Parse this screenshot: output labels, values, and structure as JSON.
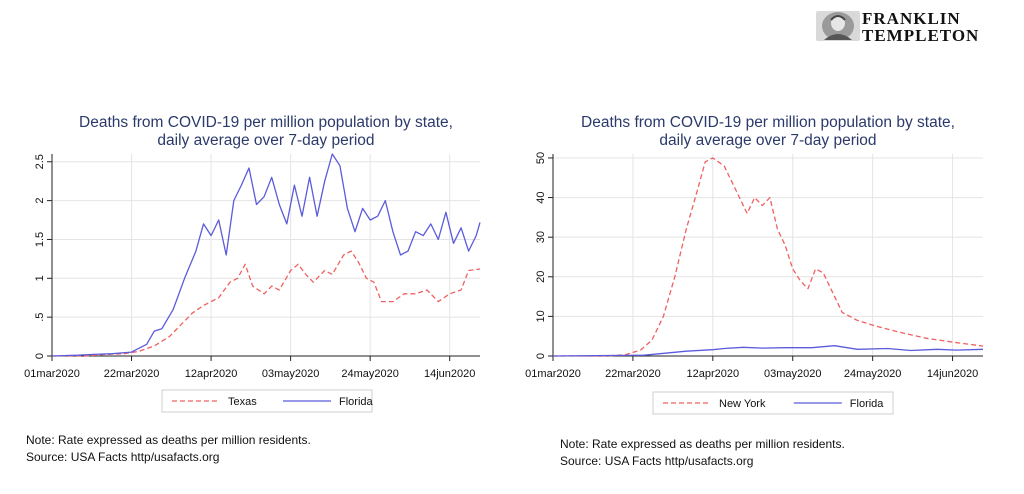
{
  "logo": {
    "line1": "FRANKLIN",
    "line2": "TEMPLETON"
  },
  "chart_data": [
    {
      "type": "line",
      "title": "Deaths from COVID-19 per million population by state,",
      "subtitle": "daily average over 7-day period",
      "xlabel": "",
      "ylabel": "",
      "x_ticks": [
        "01mar2020",
        "22mar2020",
        "12apr2020",
        "03may2020",
        "24may2020",
        "14jun2020"
      ],
      "x_range": [
        "2020-03-01",
        "2020-06-22"
      ],
      "y_ticks": [
        "0",
        ".5",
        "1",
        "1.5",
        "2",
        "2.5"
      ],
      "ylim": [
        0,
        2.6
      ],
      "grid": true,
      "legend": "bottom",
      "series": [
        {
          "name": "Texas",
          "color": "#f06060",
          "dash": true,
          "points": [
            [
              "2020-03-01",
              0
            ],
            [
              "2020-03-10",
              0
            ],
            [
              "2020-03-15",
              0.02
            ],
            [
              "2020-03-20",
              0.03
            ],
            [
              "2020-03-24",
              0.06
            ],
            [
              "2020-03-28",
              0.13
            ],
            [
              "2020-04-01",
              0.25
            ],
            [
              "2020-04-04",
              0.4
            ],
            [
              "2020-04-07",
              0.55
            ],
            [
              "2020-04-10",
              0.65
            ],
            [
              "2020-04-12",
              0.7
            ],
            [
              "2020-04-14",
              0.75
            ],
            [
              "2020-04-17",
              0.95
            ],
            [
              "2020-04-19",
              1.0
            ],
            [
              "2020-04-21",
              1.18
            ],
            [
              "2020-04-23",
              0.9
            ],
            [
              "2020-04-26",
              0.8
            ],
            [
              "2020-04-28",
              0.9
            ],
            [
              "2020-04-30",
              0.85
            ],
            [
              "2020-05-03",
              1.1
            ],
            [
              "2020-05-05",
              1.18
            ],
            [
              "2020-05-07",
              1.05
            ],
            [
              "2020-05-09",
              0.95
            ],
            [
              "2020-05-12",
              1.1
            ],
            [
              "2020-05-14",
              1.05
            ],
            [
              "2020-05-17",
              1.3
            ],
            [
              "2020-05-19",
              1.35
            ],
            [
              "2020-05-21",
              1.2
            ],
            [
              "2020-05-23",
              1.0
            ],
            [
              "2020-05-25",
              0.95
            ],
            [
              "2020-05-27",
              0.7
            ],
            [
              "2020-05-30",
              0.7
            ],
            [
              "2020-06-02",
              0.8
            ],
            [
              "2020-06-05",
              0.8
            ],
            [
              "2020-06-08",
              0.85
            ],
            [
              "2020-06-11",
              0.7
            ],
            [
              "2020-06-14",
              0.8
            ],
            [
              "2020-06-17",
              0.85
            ],
            [
              "2020-06-19",
              1.1
            ],
            [
              "2020-06-22",
              1.12
            ]
          ]
        },
        {
          "name": "Florida",
          "color": "#5b5bdb",
          "dash": false,
          "points": [
            [
              "2020-03-01",
              0
            ],
            [
              "2020-03-08",
              0.01
            ],
            [
              "2020-03-12",
              0.02
            ],
            [
              "2020-03-17",
              0.03
            ],
            [
              "2020-03-22",
              0.05
            ],
            [
              "2020-03-26",
              0.15
            ],
            [
              "2020-03-28",
              0.32
            ],
            [
              "2020-03-30",
              0.35
            ],
            [
              "2020-04-02",
              0.6
            ],
            [
              "2020-04-05",
              1.0
            ],
            [
              "2020-04-08",
              1.35
            ],
            [
              "2020-04-10",
              1.7
            ],
            [
              "2020-04-12",
              1.55
            ],
            [
              "2020-04-14",
              1.75
            ],
            [
              "2020-04-16",
              1.3
            ],
            [
              "2020-04-18",
              2.0
            ],
            [
              "2020-04-20",
              2.2
            ],
            [
              "2020-04-22",
              2.42
            ],
            [
              "2020-04-24",
              1.95
            ],
            [
              "2020-04-26",
              2.05
            ],
            [
              "2020-04-28",
              2.3
            ],
            [
              "2020-04-30",
              1.95
            ],
            [
              "2020-05-02",
              1.7
            ],
            [
              "2020-05-04",
              2.2
            ],
            [
              "2020-05-06",
              1.8
            ],
            [
              "2020-05-08",
              2.3
            ],
            [
              "2020-05-10",
              1.8
            ],
            [
              "2020-05-12",
              2.25
            ],
            [
              "2020-05-14",
              2.6
            ],
            [
              "2020-05-16",
              2.45
            ],
            [
              "2020-05-18",
              1.9
            ],
            [
              "2020-05-20",
              1.6
            ],
            [
              "2020-05-22",
              1.9
            ],
            [
              "2020-05-24",
              1.75
            ],
            [
              "2020-05-26",
              1.8
            ],
            [
              "2020-05-28",
              2.0
            ],
            [
              "2020-05-30",
              1.6
            ],
            [
              "2020-06-01",
              1.3
            ],
            [
              "2020-06-03",
              1.35
            ],
            [
              "2020-06-05",
              1.6
            ],
            [
              "2020-06-07",
              1.55
            ],
            [
              "2020-06-09",
              1.7
            ],
            [
              "2020-06-11",
              1.5
            ],
            [
              "2020-06-13",
              1.85
            ],
            [
              "2020-06-15",
              1.45
            ],
            [
              "2020-06-17",
              1.65
            ],
            [
              "2020-06-19",
              1.35
            ],
            [
              "2020-06-21",
              1.55
            ],
            [
              "2020-06-22",
              1.72
            ]
          ]
        }
      ]
    },
    {
      "type": "line",
      "title": "Deaths from COVID-19 per million population by state,",
      "subtitle": "daily average over 7-day period",
      "xlabel": "",
      "ylabel": "",
      "x_ticks": [
        "01mar2020",
        "22mar2020",
        "12apr2020",
        "03may2020",
        "24may2020",
        "14jun2020"
      ],
      "x_range": [
        "2020-03-01",
        "2020-06-22"
      ],
      "y_ticks": [
        "0",
        "10",
        "20",
        "30",
        "40",
        "50"
      ],
      "ylim": [
        0,
        51
      ],
      "grid": true,
      "legend": "bottom",
      "series": [
        {
          "name": "New York",
          "color": "#f06060",
          "dash": true,
          "points": [
            [
              "2020-03-01",
              0
            ],
            [
              "2020-03-15",
              0
            ],
            [
              "2020-03-20",
              0.3
            ],
            [
              "2020-03-24",
              1.5
            ],
            [
              "2020-03-27",
              4
            ],
            [
              "2020-03-30",
              10
            ],
            [
              "2020-04-02",
              20
            ],
            [
              "2020-04-05",
              32
            ],
            [
              "2020-04-08",
              42
            ],
            [
              "2020-04-10",
              49
            ],
            [
              "2020-04-12",
              50
            ],
            [
              "2020-04-15",
              48
            ],
            [
              "2020-04-17",
              44
            ],
            [
              "2020-04-19",
              40
            ],
            [
              "2020-04-21",
              36
            ],
            [
              "2020-04-23",
              40
            ],
            [
              "2020-04-25",
              38
            ],
            [
              "2020-04-27",
              40
            ],
            [
              "2020-04-29",
              32
            ],
            [
              "2020-05-01",
              28
            ],
            [
              "2020-05-03",
              22
            ],
            [
              "2020-05-05",
              19
            ],
            [
              "2020-05-07",
              17
            ],
            [
              "2020-05-09",
              22
            ],
            [
              "2020-05-11",
              21
            ],
            [
              "2020-05-13",
              17
            ],
            [
              "2020-05-16",
              11
            ],
            [
              "2020-05-20",
              9
            ],
            [
              "2020-05-25",
              7.5
            ],
            [
              "2020-05-31",
              6
            ],
            [
              "2020-06-07",
              4.5
            ],
            [
              "2020-06-14",
              3.5
            ],
            [
              "2020-06-22",
              2.5
            ]
          ]
        },
        {
          "name": "Florida",
          "color": "#5b5bdb",
          "dash": false,
          "points": [
            [
              "2020-03-01",
              0
            ],
            [
              "2020-03-25",
              0.2
            ],
            [
              "2020-04-05",
              1.2
            ],
            [
              "2020-04-12",
              1.6
            ],
            [
              "2020-04-15",
              1.9
            ],
            [
              "2020-04-20",
              2.2
            ],
            [
              "2020-04-25",
              2.0
            ],
            [
              "2020-05-01",
              2.1
            ],
            [
              "2020-05-08",
              2.1
            ],
            [
              "2020-05-14",
              2.6
            ],
            [
              "2020-05-20",
              1.7
            ],
            [
              "2020-05-28",
              1.9
            ],
            [
              "2020-06-03",
              1.4
            ],
            [
              "2020-06-10",
              1.7
            ],
            [
              "2020-06-15",
              1.5
            ],
            [
              "2020-06-22",
              1.7
            ]
          ]
        }
      ]
    }
  ],
  "notes": {
    "left": {
      "line1": "Note: Rate expressed as deaths per million residents.",
      "line2": "Source: USA Facts http/usafacts.org"
    },
    "right": {
      "line1": "Note: Rate expressed as deaths per million residents.",
      "line2": "Source: USA Facts http/usafacts.org"
    }
  }
}
